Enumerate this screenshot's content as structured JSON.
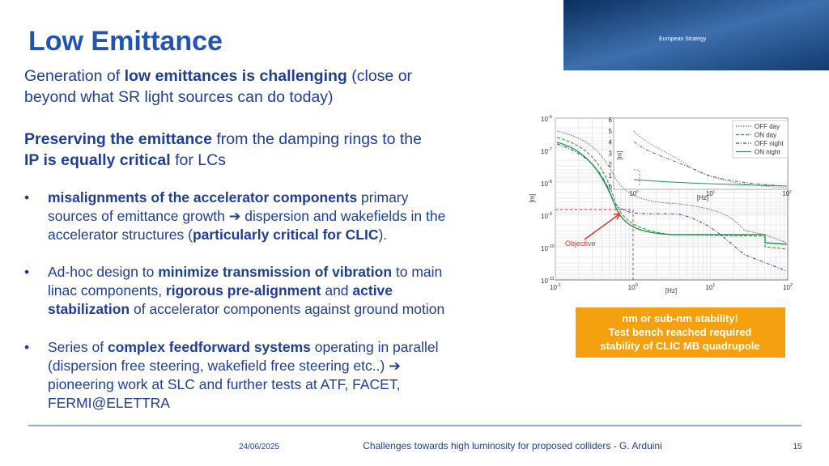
{
  "header": {
    "title": "Low Emittance",
    "logo_text": "European Strategy"
  },
  "body": [
    {
      "lines": [
        [
          {
            "t": "Generation of "
          },
          {
            "t": "low emittances is challenging",
            "b": true
          },
          {
            "t": " (close or"
          }
        ],
        [
          {
            "t": "beyond what SR light sources can do today)"
          }
        ]
      ]
    },
    {
      "lines": [
        [
          {
            "t": "Preserving the emittance",
            "b": true
          },
          {
            "t": " from the damping rings to the"
          }
        ],
        [
          {
            "t": "IP is equally critical",
            "b": true
          },
          {
            "t": " for LCs"
          }
        ]
      ]
    }
  ],
  "bullets": [
    {
      "marker": "•",
      "lines": [
        [
          {
            "t": "misalignments of the accelerator components",
            "b": true
          },
          {
            "t": " primary"
          }
        ],
        [
          {
            "t": "sources of emittance growth ➔ dispersion and wakefields in the"
          }
        ],
        [
          {
            "t": "accelerator structures ("
          },
          {
            "t": "particularly critical for CLIC",
            "b": true
          },
          {
            "t": ")."
          }
        ]
      ]
    },
    {
      "marker": "•",
      "lines": [
        [
          {
            "t": "Ad-hoc design to "
          },
          {
            "t": "minimize transmission of vibration",
            "b": true
          },
          {
            "t": " to main"
          }
        ],
        [
          {
            "t": "linac components, "
          },
          {
            "t": "rigorous pre-alignment",
            "b": true
          },
          {
            "t": " and "
          },
          {
            "t": "active",
            "b": true
          }
        ],
        [
          {
            "t": "stabilization",
            "b": true
          },
          {
            "t": " of accelerator components against ground motion"
          }
        ]
      ]
    },
    {
      "marker": "•",
      "lines": [
        [
          {
            "t": "Series of "
          },
          {
            "t": "complex feedforward systems",
            "b": true
          },
          {
            "t": " operating in parallel"
          }
        ],
        [
          {
            "t": "(dispersion free steering, wakefield free steering etc..) ➔"
          }
        ],
        [
          {
            "t": "pioneering work at SLC and further tests at ATF, FACET,"
          }
        ],
        [
          {
            "t": "FERMI@ELETTRA"
          }
        ]
      ]
    }
  ],
  "figure": {
    "y_label": "[m]",
    "x_label": "[Hz]",
    "annotation": "Objective",
    "yticks": [
      {
        "base": "10",
        "exp": "-6"
      },
      {
        "base": "10",
        "exp": "-7"
      },
      {
        "base": "10",
        "exp": "-8"
      },
      {
        "base": "10",
        "exp": "-9"
      },
      {
        "base": "10",
        "exp": "-10"
      },
      {
        "base": "10",
        "exp": "-11"
      }
    ],
    "xticks": [
      {
        "base": "10",
        "exp": "-1"
      },
      {
        "base": "10",
        "exp": "0"
      },
      {
        "base": "10",
        "exp": "1"
      },
      {
        "base": "10",
        "exp": "2"
      }
    ],
    "legend": [
      "OFF day",
      "ON day",
      "OFF night",
      "ON night"
    ],
    "inset": {
      "y_label": "[m]",
      "x_label": "[Hz]",
      "yticks": [
        "6",
        "5",
        "4",
        "3",
        "2",
        "1",
        "0"
      ],
      "xticks": [
        {
          "base": "10",
          "exp": "0"
        },
        {
          "base": "10",
          "exp": "1"
        },
        {
          "base": "10",
          "exp": "2"
        }
      ]
    }
  },
  "callout": [
    "nm or sub-nm stability!",
    "Test bench reached required",
    "stability of CLIC MB quadrupole"
  ],
  "footer": {
    "date": "24/06/2025",
    "text": "Challenges towards high luminosity for proposed colliders - G. Arduini",
    "page": "15"
  }
}
